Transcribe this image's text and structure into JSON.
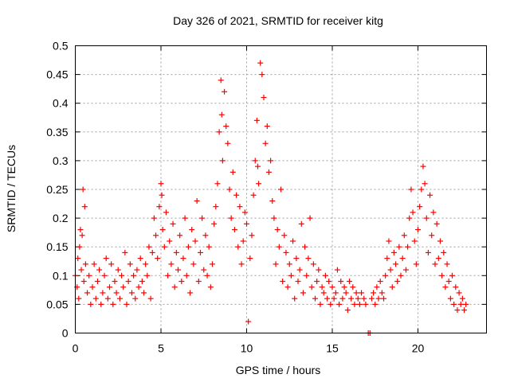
{
  "chart_data": {
    "type": "scatter",
    "title": "Day 326 of 2021, SRMTID for receiver kitg",
    "xlabel": "GPS time / hours",
    "ylabel": "SRMTID / TECUs",
    "xlim": [
      0,
      24
    ],
    "ylim": [
      0,
      0.5
    ],
    "xticks": [
      0,
      5,
      10,
      15,
      20
    ],
    "xtick_labels": [
      "0",
      "5",
      "10",
      "15",
      "20"
    ],
    "yticks": [
      0,
      0.05,
      0.1,
      0.15,
      0.2,
      0.25,
      0.3,
      0.35,
      0.4,
      0.45,
      0.5
    ],
    "ytick_labels": [
      "0",
      "0.05",
      "0.1",
      "0.15",
      "0.2",
      "0.25",
      "0.3",
      "0.35",
      "0.4",
      "0.45",
      "0.5"
    ],
    "grid": true,
    "marker": "+",
    "color": "#ff0000",
    "series": [
      {
        "name": "SRMTID",
        "x": [
          0.0,
          0.1,
          0.15,
          0.2,
          0.25,
          0.3,
          0.35,
          0.4,
          0.45,
          0.5,
          0.55,
          0.6,
          0.7,
          0.8,
          0.9,
          1.0,
          1.1,
          1.2,
          1.3,
          1.4,
          1.5,
          1.6,
          1.7,
          1.8,
          1.9,
          2.0,
          2.1,
          2.2,
          2.3,
          2.4,
          2.5,
          2.6,
          2.7,
          2.8,
          2.9,
          3.0,
          3.1,
          3.2,
          3.3,
          3.4,
          3.5,
          3.6,
          3.7,
          3.8,
          3.9,
          4.0,
          4.1,
          4.2,
          4.3,
          4.4,
          4.5,
          4.6,
          4.7,
          4.8,
          4.9,
          5.0,
          5.05,
          5.1,
          5.2,
          5.3,
          5.4,
          5.5,
          5.6,
          5.7,
          5.8,
          5.9,
          6.0,
          6.1,
          6.2,
          6.3,
          6.4,
          6.5,
          6.6,
          6.7,
          6.8,
          6.9,
          7.0,
          7.1,
          7.2,
          7.3,
          7.4,
          7.5,
          7.6,
          7.7,
          7.8,
          7.9,
          8.0,
          8.1,
          8.2,
          8.3,
          8.4,
          8.5,
          8.55,
          8.6,
          8.7,
          8.8,
          8.9,
          9.0,
          9.1,
          9.2,
          9.3,
          9.4,
          9.5,
          9.6,
          9.7,
          9.8,
          9.9,
          10.0,
          10.1,
          10.2,
          10.3,
          10.4,
          10.5,
          10.6,
          10.65,
          10.7,
          10.8,
          10.9,
          11.0,
          11.1,
          11.2,
          11.3,
          11.4,
          11.5,
          11.6,
          11.7,
          11.8,
          11.9,
          12.0,
          12.1,
          12.2,
          12.3,
          12.4,
          12.5,
          12.6,
          12.7,
          12.8,
          12.9,
          13.0,
          13.1,
          13.2,
          13.3,
          13.4,
          13.5,
          13.6,
          13.7,
          13.8,
          13.9,
          14.0,
          14.1,
          14.2,
          14.3,
          14.4,
          14.5,
          14.6,
          14.7,
          14.8,
          14.9,
          15.0,
          15.1,
          15.2,
          15.3,
          15.4,
          15.5,
          15.6,
          15.7,
          15.8,
          15.9,
          16.0,
          16.1,
          16.2,
          16.3,
          16.4,
          16.5,
          16.6,
          16.7,
          16.85,
          16.95,
          17.1,
          17.2,
          17.3,
          17.4,
          17.5,
          17.6,
          17.7,
          17.8,
          17.9,
          18.0,
          18.1,
          18.2,
          18.3,
          18.4,
          18.5,
          18.6,
          18.7,
          18.8,
          18.9,
          19.0,
          19.1,
          19.2,
          19.3,
          19.4,
          19.5,
          19.6,
          19.7,
          19.8,
          19.9,
          20.0,
          20.1,
          20.2,
          20.3,
          20.4,
          20.5,
          20.6,
          20.7,
          20.8,
          20.9,
          21.0,
          21.1,
          21.2,
          21.3,
          21.4,
          21.5,
          21.6,
          21.7,
          21.8,
          21.9,
          22.0,
          22.1,
          22.2,
          22.3,
          22.4,
          22.5,
          22.6,
          22.7,
          22.8
        ],
        "y": [
          0.1,
          0.08,
          0.13,
          0.06,
          0.15,
          0.18,
          0.11,
          0.17,
          0.25,
          0.09,
          0.22,
          0.12,
          0.07,
          0.1,
          0.05,
          0.08,
          0.12,
          0.06,
          0.09,
          0.11,
          0.05,
          0.07,
          0.1,
          0.13,
          0.06,
          0.08,
          0.12,
          0.05,
          0.09,
          0.07,
          0.11,
          0.06,
          0.1,
          0.08,
          0.14,
          0.05,
          0.09,
          0.12,
          0.07,
          0.1,
          0.06,
          0.11,
          0.08,
          0.13,
          0.09,
          0.07,
          0.12,
          0.1,
          0.15,
          0.06,
          0.14,
          0.2,
          0.17,
          0.13,
          0.22,
          0.26,
          0.24,
          0.18,
          0.15,
          0.21,
          0.1,
          0.16,
          0.12,
          0.19,
          0.08,
          0.14,
          0.11,
          0.17,
          0.09,
          0.13,
          0.2,
          0.1,
          0.15,
          0.07,
          0.18,
          0.12,
          0.16,
          0.23,
          0.09,
          0.14,
          0.2,
          0.11,
          0.17,
          0.1,
          0.15,
          0.08,
          0.12,
          0.19,
          0.22,
          0.26,
          0.35,
          0.44,
          0.38,
          0.3,
          0.42,
          0.36,
          0.33,
          0.25,
          0.2,
          0.28,
          0.18,
          0.24,
          0.15,
          0.22,
          0.12,
          0.16,
          0.21,
          0.19,
          0.02,
          0.13,
          0.17,
          0.24,
          0.3,
          0.37,
          0.29,
          0.26,
          0.47,
          0.45,
          0.41,
          0.33,
          0.36,
          0.28,
          0.3,
          0.23,
          0.2,
          0.12,
          0.18,
          0.15,
          0.25,
          0.09,
          0.17,
          0.14,
          0.08,
          0.12,
          0.1,
          0.16,
          0.06,
          0.13,
          0.09,
          0.11,
          0.19,
          0.07,
          0.15,
          0.1,
          0.13,
          0.2,
          0.08,
          0.12,
          0.06,
          0.09,
          0.11,
          0.05,
          0.08,
          0.07,
          0.1,
          0.06,
          0.09,
          0.05,
          0.08,
          0.06,
          0.07,
          0.11,
          0.05,
          0.09,
          0.06,
          0.08,
          0.07,
          0.04,
          0.09,
          0.06,
          0.08,
          0.05,
          0.07,
          0.06,
          0.05,
          0.07,
          0.06,
          0.05,
          0.0,
          0.0,
          0.06,
          0.07,
          0.05,
          0.08,
          0.06,
          0.09,
          0.07,
          0.06,
          0.1,
          0.13,
          0.16,
          0.11,
          0.08,
          0.14,
          0.12,
          0.09,
          0.15,
          0.1,
          0.13,
          0.17,
          0.11,
          0.15,
          0.2,
          0.25,
          0.21,
          0.16,
          0.12,
          0.18,
          0.22,
          0.25,
          0.29,
          0.26,
          0.2,
          0.14,
          0.24,
          0.17,
          0.21,
          0.12,
          0.19,
          0.13,
          0.16,
          0.1,
          0.14,
          0.08,
          0.12,
          0.09,
          0.06,
          0.1,
          0.05,
          0.08,
          0.04,
          0.07,
          0.05,
          0.06,
          0.04,
          0.05
        ]
      }
    ]
  }
}
